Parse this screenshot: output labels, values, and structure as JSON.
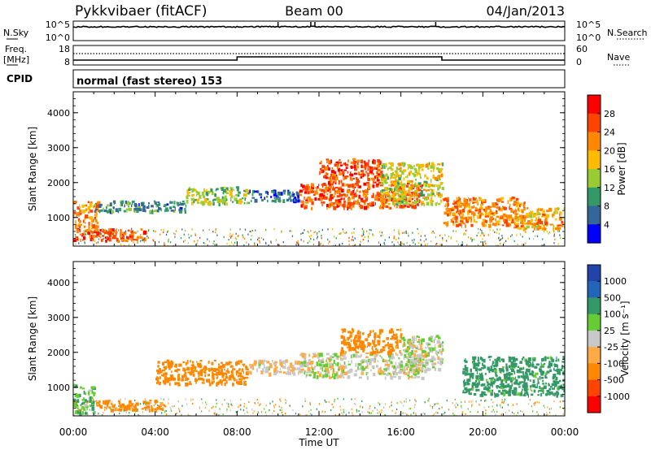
{
  "header": {
    "title": "Pykkvibaer (fitACF)",
    "beam": "Beam 00",
    "date": "04/Jan/2013"
  },
  "nsky_panel": {
    "left_label": "N.Sky",
    "left_ticks": [
      "10^5",
      "10^0"
    ],
    "right_label": "N.Search",
    "right_ticks": [
      "10^5",
      "10^0"
    ]
  },
  "freq_panel": {
    "left_label_1": "Freq.",
    "left_label_2": "[MHz]",
    "left_ticks": [
      "18",
      "8"
    ],
    "right_label": "Nave",
    "right_ticks": [
      "60",
      "0"
    ]
  },
  "cpid": {
    "label": "CPID",
    "text": "normal (fast stereo) 153"
  },
  "power_panel": {
    "ylabel": "Slant Range [km]",
    "yticks": [
      "4000",
      "3000",
      "2000",
      "1000"
    ],
    "colorbar_label": "Power [dB]",
    "colorbar_ticks": [
      "28",
      "24",
      "20",
      "16",
      "12",
      "8",
      "4"
    ],
    "colorbar_colors": [
      "#ff0000",
      "#ff4400",
      "#ff8800",
      "#ffbb00",
      "#99cc33",
      "#339966",
      "#336699",
      "#0000ff"
    ]
  },
  "velocity_panel": {
    "ylabel": "Slant Range [km]",
    "yticks": [
      "4000",
      "3000",
      "2000",
      "1000"
    ],
    "colorbar_label": "Velocity [m s⁻¹]",
    "colorbar_ticks": [
      "1000",
      "500",
      "100",
      "25",
      "-25",
      "-100",
      "-500",
      "-1000"
    ],
    "colorbar_colors": [
      "#2244aa",
      "#2266bb",
      "#339966",
      "#66cc33",
      "#c8c8c8",
      "#ffaa44",
      "#ff8800",
      "#ff4400",
      "#ff0000"
    ]
  },
  "xaxis": {
    "label": "Time UT",
    "ticks": [
      "00:00",
      "04:00",
      "08:00",
      "12:00",
      "16:00",
      "20:00",
      "00:00"
    ]
  },
  "chart_data": {
    "type": "heatmap",
    "x_range_hours": [
      0,
      24
    ],
    "y_range_km": [
      180,
      4600
    ],
    "power_scale_db": [
      0,
      32
    ],
    "velocity_scale_ms": [
      -1000,
      1000
    ],
    "freq_step_hours": [
      8,
      18
    ],
    "freq_mhz": [
      8,
      9,
      8
    ],
    "power_regions": [
      {
        "t0": 0.0,
        "t1": 3.5,
        "r0": 350,
        "r1": 700,
        "value_db": 26
      },
      {
        "t0": 0.0,
        "t1": 1.2,
        "r0": 700,
        "r1": 1500,
        "value_db": 22
      },
      {
        "t0": 1.0,
        "t1": 5.5,
        "r0": 1200,
        "r1": 1500,
        "value_db": 8
      },
      {
        "t0": 5.5,
        "t1": 8.5,
        "r0": 1400,
        "r1": 1900,
        "value_db": 14
      },
      {
        "t0": 8.5,
        "t1": 11.0,
        "r0": 1500,
        "r1": 1800,
        "value_db": 6
      },
      {
        "t0": 11.0,
        "t1": 17.0,
        "r0": 1300,
        "r1": 2000,
        "value_db": 25
      },
      {
        "t0": 12.0,
        "t1": 15.0,
        "r0": 2000,
        "r1": 2700,
        "value_db": 27
      },
      {
        "t0": 15.0,
        "t1": 18.0,
        "r0": 1400,
        "r1": 2600,
        "value_db": 16
      },
      {
        "t0": 18.0,
        "t1": 22.0,
        "r0": 800,
        "r1": 1600,
        "value_db": 22
      },
      {
        "t0": 21.5,
        "t1": 24.0,
        "r0": 700,
        "r1": 1300,
        "value_db": 20
      }
    ],
    "velocity_regions": [
      {
        "t0": 0.0,
        "t1": 1.0,
        "r0": 250,
        "r1": 1100,
        "value_ms": 80
      },
      {
        "t0": 1.0,
        "t1": 4.5,
        "r0": 380,
        "r1": 650,
        "value_ms": -150
      },
      {
        "t0": 4.0,
        "t1": 8.5,
        "r0": 1100,
        "r1": 1800,
        "value_ms": -200
      },
      {
        "t0": 8.5,
        "t1": 11.0,
        "r0": 1400,
        "r1": 1800,
        "value_ms": -30
      },
      {
        "t0": 11.0,
        "t1": 17.0,
        "r0": 1300,
        "r1": 2000,
        "value_ms": 10
      },
      {
        "t0": 13.0,
        "t1": 16.0,
        "r0": 2000,
        "r1": 2700,
        "value_ms": -180
      },
      {
        "t0": 16.0,
        "t1": 18.0,
        "r0": 1500,
        "r1": 2500,
        "value_ms": 10
      },
      {
        "t0": 19.0,
        "t1": 24.0,
        "r0": 800,
        "r1": 1900,
        "value_ms": 150
      }
    ]
  }
}
